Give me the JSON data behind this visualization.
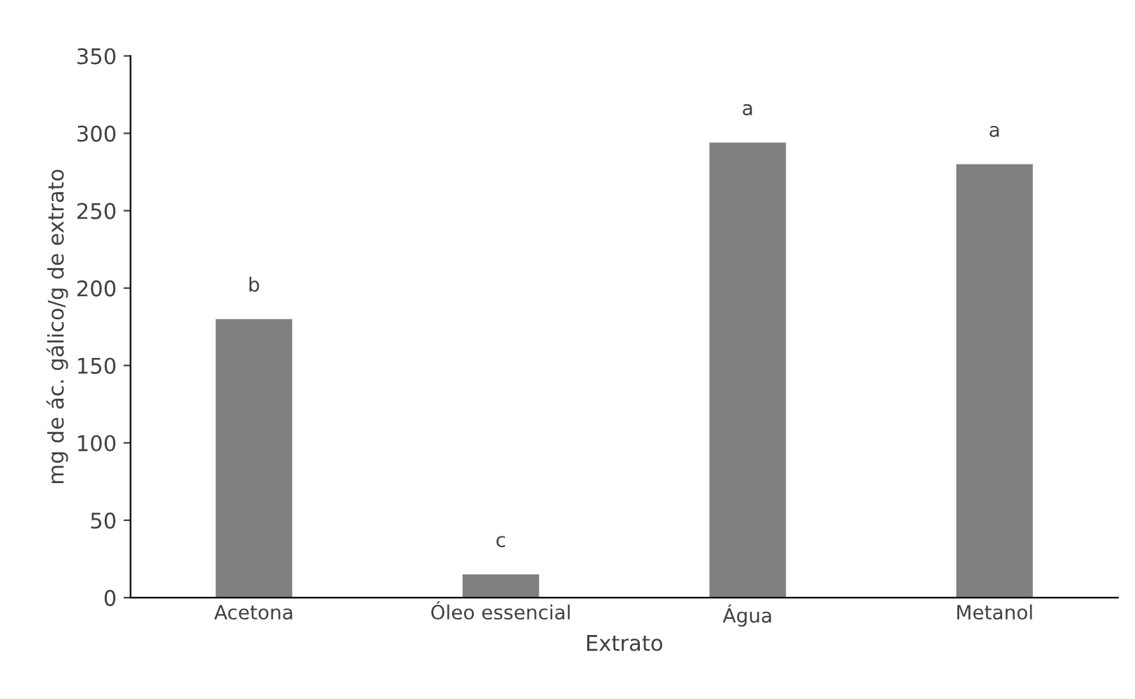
{
  "chart_data": {
    "type": "bar",
    "xlabel": "Extrato",
    "ylabel": "mg de ác. gálico/g de extrato",
    "categories": [
      "Acetona",
      "Óleo essencial",
      "Água",
      "Metanol"
    ],
    "values": [
      180,
      15,
      294,
      280
    ],
    "color": "#808080",
    "ylim": [
      0,
      350
    ],
    "yticks": [
      0,
      50,
      100,
      150,
      200,
      250,
      300,
      350
    ],
    "grid": false,
    "annotations": [
      {
        "text": "b",
        "x": "Acetona",
        "y": 180
      },
      {
        "text": "c",
        "x": "Óleo essencial",
        "y": 15
      },
      {
        "text": "a",
        "x": "Água",
        "y": 294
      },
      {
        "text": "a",
        "x": "Metanol",
        "y": 280
      }
    ]
  }
}
